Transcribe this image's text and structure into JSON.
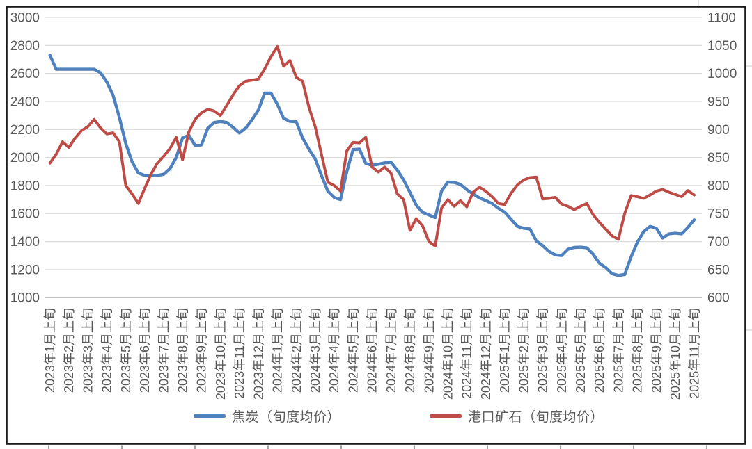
{
  "chart_data": {
    "type": "line",
    "title": "",
    "x_tick_labels": [
      "2023年1月上旬",
      "2023年2月上旬",
      "2023年3月上旬",
      "2023年4月上旬",
      "2023年5月上旬",
      "2023年6月上旬",
      "2023年7月上旬",
      "2023年8月上旬",
      "2023年9月上旬",
      "2023年10月上旬",
      "2023年11月上旬",
      "2023年12月上旬",
      "2024年1月上旬",
      "2024年2月上旬",
      "2024年3月上旬",
      "2024年4月上旬",
      "2024年5月上旬",
      "2024年6月上旬",
      "2024年7月上旬",
      "2024年8月上旬",
      "2024年9月上旬",
      "2024年10月上旬",
      "2024年11月上旬",
      "2024年12月上旬",
      "2025年1月上旬",
      "2025年2月上旬",
      "2025年3月上旬",
      "2025年4月上旬",
      "2025年5月上旬",
      "2025年6月上旬",
      "2025年7月上旬",
      "2025年8月上旬",
      "2025年9月上旬",
      "2025年10月上旬",
      "2025年11月上旬"
    ],
    "points_per_tick": 3,
    "x_note": "data at 旬 (10-day) resolution, labels shown for 上旬 of each month",
    "series": [
      {
        "name": "焦炭（旬度均价）",
        "axis": "left",
        "color": "#4E81BD",
        "values": [
          2730,
          2630,
          2630,
          2630,
          2630,
          2630,
          2630,
          2630,
          2605,
          2540,
          2445,
          2285,
          2100,
          1970,
          1890,
          1872,
          1870,
          1872,
          1880,
          1920,
          2000,
          2140,
          2158,
          2085,
          2090,
          2210,
          2250,
          2257,
          2250,
          2215,
          2175,
          2210,
          2270,
          2340,
          2460,
          2460,
          2380,
          2280,
          2258,
          2255,
          2140,
          2060,
          1990,
          1870,
          1760,
          1715,
          1700,
          1900,
          2057,
          2060,
          1958,
          1945,
          1952,
          1962,
          1966,
          1910,
          1840,
          1750,
          1660,
          1608,
          1590,
          1572,
          1760,
          1825,
          1822,
          1808,
          1770,
          1740,
          1712,
          1693,
          1672,
          1638,
          1610,
          1560,
          1508,
          1495,
          1490,
          1405,
          1371,
          1330,
          1305,
          1300,
          1345,
          1358,
          1360,
          1355,
          1310,
          1245,
          1215,
          1170,
          1158,
          1165,
          1290,
          1395,
          1470,
          1508,
          1495,
          1425,
          1455,
          1460,
          1455,
          1500,
          1555
        ]
      },
      {
        "name": "港口矿石（旬度均价）",
        "axis": "right",
        "color": "#BF4B47",
        "values": [
          840,
          856,
          878,
          868,
          885,
          898,
          905,
          918,
          903,
          892,
          894,
          878,
          800,
          785,
          768,
          795,
          820,
          840,
          852,
          866,
          886,
          846,
          896,
          918,
          930,
          936,
          933,
          925,
          943,
          962,
          978,
          986,
          988,
          990,
          1008,
          1030,
          1048,
          1013,
          1023,
          993,
          986,
          940,
          905,
          855,
          806,
          800,
          790,
          862,
          877,
          876,
          886,
          833,
          824,
          833,
          822,
          785,
          775,
          720,
          741,
          728,
          700,
          692,
          760,
          775,
          763,
          773,
          762,
          788,
          797,
          790,
          780,
          768,
          766,
          786,
          801,
          810,
          814,
          815,
          776,
          777,
          779,
          767,
          763,
          757,
          763,
          768,
          748,
          734,
          722,
          710,
          704,
          750,
          782,
          780,
          777,
          783,
          790,
          793,
          788,
          784,
          780,
          791,
          783
        ]
      }
    ],
    "left_axis": {
      "min": 1000,
      "max": 3000,
      "step": 200,
      "ticks": [
        3000,
        2800,
        2600,
        2400,
        2200,
        2000,
        1800,
        1600,
        1400,
        1200,
        1000
      ]
    },
    "right_axis": {
      "min": 600,
      "max": 1100,
      "step": 50,
      "ticks": [
        1100,
        1050,
        1000,
        950,
        900,
        850,
        800,
        750,
        700,
        650,
        600
      ]
    },
    "grid": "horizontal",
    "legend_position": "bottom",
    "colors": {
      "gridline": "#D9D9D9",
      "axis_line": "#C2C2C2",
      "tick_label": "#595959",
      "frame": "#1a1a1a",
      "frame_tick": "#8c8c8c"
    }
  },
  "legend": {
    "items": [
      {
        "label": "焦炭（旬度均价）",
        "color": "#4E81BD"
      },
      {
        "label": "港口矿石（旬度均价）",
        "color": "#BF4B47"
      }
    ]
  }
}
